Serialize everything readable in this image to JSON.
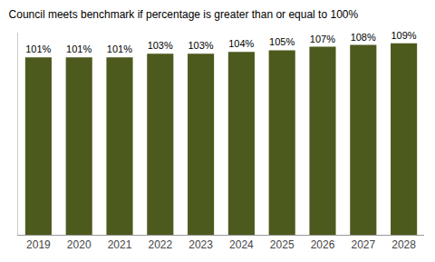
{
  "chart_data": {
    "type": "bar",
    "title": "Council meets benchmark if percentage is greater than or equal to 100%",
    "categories": [
      "2019",
      "2020",
      "2021",
      "2022",
      "2023",
      "2024",
      "2025",
      "2026",
      "2027",
      "2028"
    ],
    "values": [
      101,
      101,
      101,
      103,
      103,
      104,
      105,
      107,
      108,
      109
    ],
    "value_labels": [
      "101%",
      "101%",
      "101%",
      "103%",
      "103%",
      "104%",
      "105%",
      "107%",
      "108%",
      "109%"
    ],
    "color": "#4d5a1e",
    "ylim": [
      0,
      115
    ],
    "data_labels": true,
    "tick_labels": "x",
    "grid": false
  }
}
